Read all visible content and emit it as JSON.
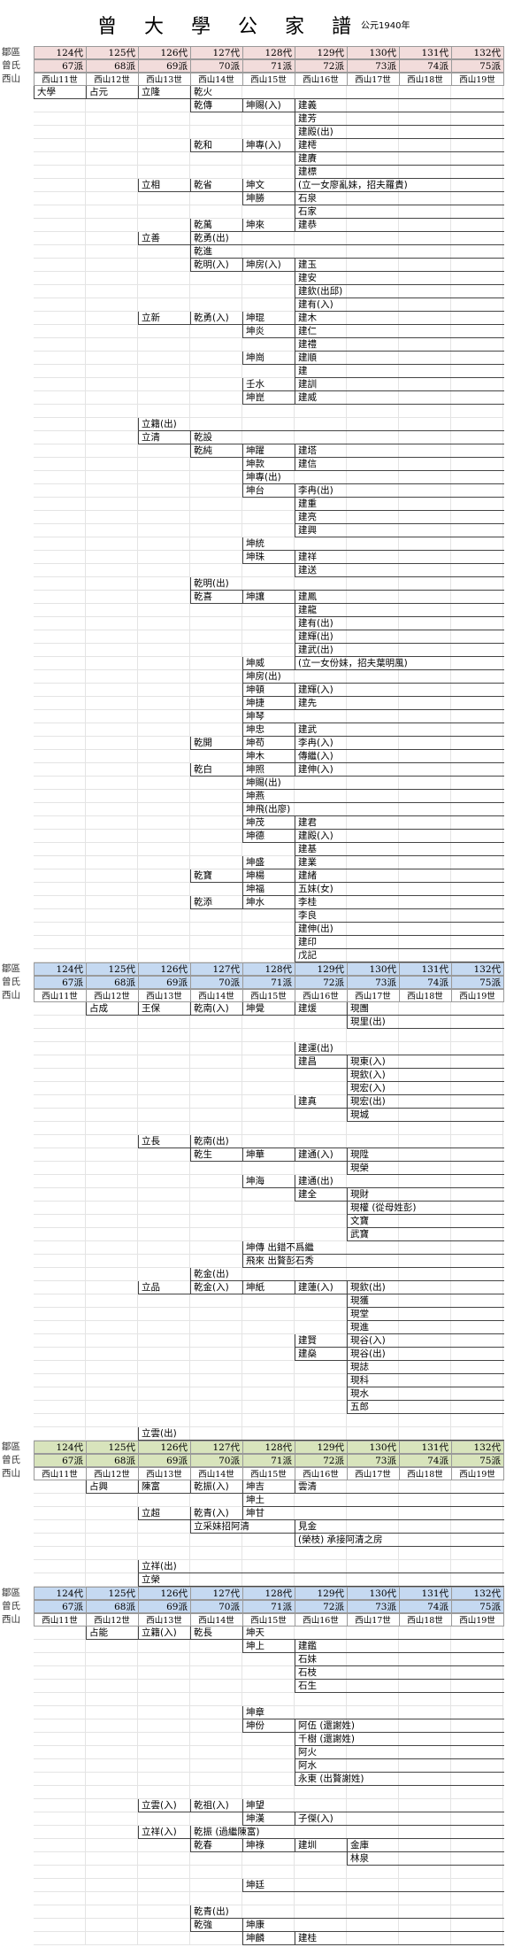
{
  "header": {
    "title": "曾 大 學 公 家 譜",
    "year": "公元1940年"
  },
  "sections": [
    {
      "color": "#f2dcdb",
      "headers": [
        [
          "鄒區",
          "124代",
          "125代",
          "126代",
          "127代",
          "128代",
          "129代",
          "130代",
          "131代",
          "132代"
        ],
        [
          "曾氏",
          "67派",
          "68派",
          "69派",
          "70派",
          "71派",
          "72派",
          "73派",
          "74派",
          "75派"
        ],
        [
          "西山",
          "西山11世",
          "西山12世",
          "西山13世",
          "西山14世",
          "西山15世",
          "西山16世",
          "西山17世",
          "西山18世",
          "西山19世"
        ]
      ],
      "rows": [
        [
          null,
          "大學",
          "占元",
          "立隆",
          "乾火"
        ],
        [
          null,
          null,
          null,
          null,
          "乾傳",
          "坤賜(入)",
          "建義"
        ],
        [
          null,
          null,
          null,
          null,
          null,
          null,
          "建芳"
        ],
        [
          null,
          null,
          null,
          null,
          null,
          null,
          "建殿(出)"
        ],
        [
          null,
          null,
          null,
          null,
          "乾和",
          "坤專(入)",
          "建樗"
        ],
        [
          null,
          null,
          null,
          null,
          null,
          null,
          "建賡"
        ],
        [
          null,
          null,
          null,
          null,
          null,
          null,
          "建標"
        ],
        [
          null,
          null,
          null,
          "立相",
          "乾省",
          "坤文",
          "(立一女廖亂妹，招夫羅貴)"
        ],
        [
          null,
          null,
          null,
          null,
          null,
          "坤勝",
          "石泉"
        ],
        [
          null,
          null,
          null,
          null,
          null,
          null,
          "石家"
        ],
        [
          null,
          null,
          null,
          null,
          "乾萬",
          "坤來",
          "建恭"
        ],
        [
          null,
          null,
          null,
          "立善",
          "乾勇(出)"
        ],
        [
          null,
          null,
          null,
          null,
          "乾進"
        ],
        [
          null,
          null,
          null,
          null,
          "乾明(入)",
          "坤房(入)",
          "建玉"
        ],
        [
          null,
          null,
          null,
          null,
          null,
          null,
          "建安"
        ],
        [
          null,
          null,
          null,
          null,
          null,
          null,
          "建欽(出邱)"
        ],
        [
          null,
          null,
          null,
          null,
          null,
          null,
          "建有(入)"
        ],
        [
          null,
          null,
          null,
          "立新",
          "乾勇(入)",
          "坤琨",
          "建木"
        ],
        [
          null,
          null,
          null,
          null,
          null,
          "坤炎",
          "建仁"
        ],
        [
          null,
          null,
          null,
          null,
          null,
          null,
          "建禮"
        ],
        [
          null,
          null,
          null,
          null,
          null,
          "坤崗",
          "建順"
        ],
        [
          null,
          null,
          null,
          null,
          null,
          null,
          "建"
        ],
        [
          null,
          null,
          null,
          null,
          null,
          "壬水",
          "建訓"
        ],
        [
          null,
          null,
          null,
          null,
          null,
          "坤崑",
          "建威"
        ],
        [],
        [
          null,
          null,
          null,
          "立籍(出)"
        ],
        [
          null,
          null,
          null,
          "立清",
          "乾設"
        ],
        [
          null,
          null,
          null,
          null,
          "乾純",
          "坤躍",
          "建塔"
        ],
        [
          null,
          null,
          null,
          null,
          null,
          "坤款",
          "建信"
        ],
        [
          null,
          null,
          null,
          null,
          null,
          "坤專(出)"
        ],
        [
          null,
          null,
          null,
          null,
          null,
          "坤台",
          "李冉(出)"
        ],
        [
          null,
          null,
          null,
          null,
          null,
          null,
          "建重"
        ],
        [
          null,
          null,
          null,
          null,
          null,
          null,
          "建亮"
        ],
        [
          null,
          null,
          null,
          null,
          null,
          null,
          "建興"
        ],
        [
          null,
          null,
          null,
          null,
          null,
          "坤統"
        ],
        [
          null,
          null,
          null,
          null,
          null,
          "坤珠",
          "建祥"
        ],
        [
          null,
          null,
          null,
          null,
          null,
          null,
          "建送"
        ],
        [
          null,
          null,
          null,
          null,
          "乾明(出)"
        ],
        [
          null,
          null,
          null,
          null,
          "乾喜",
          "坤讓",
          "建鳳"
        ],
        [
          null,
          null,
          null,
          null,
          null,
          null,
          "建龍"
        ],
        [
          null,
          null,
          null,
          null,
          null,
          null,
          "建有(出)"
        ],
        [
          null,
          null,
          null,
          null,
          null,
          null,
          "建輝(出)"
        ],
        [
          null,
          null,
          null,
          null,
          null,
          null,
          "建武(出)"
        ],
        [
          null,
          null,
          null,
          null,
          null,
          "坤威",
          "(立一女份妹，招夫葉明風)"
        ],
        [
          null,
          null,
          null,
          null,
          null,
          "坤房(出)"
        ],
        [
          null,
          null,
          null,
          null,
          null,
          "坤頓",
          "建輝(入)"
        ],
        [
          null,
          null,
          null,
          null,
          null,
          "坤捷",
          "建先"
        ],
        [
          null,
          null,
          null,
          null,
          null,
          "坤琴"
        ],
        [
          null,
          null,
          null,
          null,
          null,
          "坤忠",
          "建武"
        ],
        [
          null,
          null,
          null,
          null,
          "乾開",
          "坤苟",
          "李冉(入)"
        ],
        [
          null,
          null,
          null,
          null,
          null,
          "坤木",
          "傳繼(入)"
        ],
        [
          null,
          null,
          null,
          null,
          "乾白",
          "坤照",
          "建伸(入)"
        ],
        [
          null,
          null,
          null,
          null,
          null,
          "坤賜(出)"
        ],
        [
          null,
          null,
          null,
          null,
          null,
          "坤燕"
        ],
        [
          null,
          null,
          null,
          null,
          null,
          "坤飛(出廖)"
        ],
        [
          null,
          null,
          null,
          null,
          null,
          "坤茂",
          "建君"
        ],
        [
          null,
          null,
          null,
          null,
          null,
          "坤德",
          "建殿(入)"
        ],
        [
          null,
          null,
          null,
          null,
          null,
          null,
          "建基"
        ],
        [
          null,
          null,
          null,
          null,
          null,
          "坤盛",
          "建業"
        ],
        [
          null,
          null,
          null,
          null,
          "乾寶",
          "坤楊",
          "建緒"
        ],
        [
          null,
          null,
          null,
          null,
          null,
          "坤福",
          "五妹(女)"
        ],
        [
          null,
          null,
          null,
          null,
          "乾添",
          "坤水",
          "李桂"
        ],
        [
          null,
          null,
          null,
          null,
          null,
          null,
          "李良"
        ],
        [
          null,
          null,
          null,
          null,
          null,
          null,
          "建伸(出)"
        ],
        [
          null,
          null,
          null,
          null,
          null,
          null,
          "建印"
        ],
        [
          null,
          null,
          null,
          null,
          null,
          null,
          "戊記"
        ]
      ]
    },
    {
      "color": "#c5d9f1",
      "headers": [
        [
          "鄒區",
          "124代",
          "125代",
          "126代",
          "127代",
          "128代",
          "129代",
          "130代",
          "131代",
          "132代"
        ],
        [
          "曾氏",
          "67派",
          "68派",
          "69派",
          "70派",
          "71派",
          "72派",
          "73派",
          "74派",
          "75派"
        ],
        [
          "西山",
          "西山11世",
          "西山12世",
          "西山13世",
          "西山14世",
          "西山15世",
          "西山16世",
          "西山17世",
          "西山18世",
          "西山19世"
        ]
      ],
      "rows": [
        [
          null,
          null,
          "占成",
          "王保",
          "乾南(入)",
          "坤覺",
          "建煖",
          "現團"
        ],
        [
          null,
          null,
          null,
          null,
          null,
          null,
          null,
          "現里(出)"
        ],
        [],
        [
          null,
          null,
          null,
          null,
          null,
          null,
          "建運(出)"
        ],
        [
          null,
          null,
          null,
          null,
          null,
          null,
          "建昌",
          "現東(入)"
        ],
        [
          null,
          null,
          null,
          null,
          null,
          null,
          null,
          "現欽(入)"
        ],
        [
          null,
          null,
          null,
          null,
          null,
          null,
          null,
          "現宏(入)"
        ],
        [
          null,
          null,
          null,
          null,
          null,
          null,
          "建真",
          "現宏(出)"
        ],
        [
          null,
          null,
          null,
          null,
          null,
          null,
          null,
          "現城"
        ],
        [],
        [
          null,
          null,
          null,
          "立長",
          "乾南(出)"
        ],
        [
          null,
          null,
          null,
          null,
          "乾生",
          "坤華",
          "建通(入)",
          "現陞"
        ],
        [
          null,
          null,
          null,
          null,
          null,
          null,
          null,
          "現榮"
        ],
        [
          null,
          null,
          null,
          null,
          null,
          "坤海",
          "建通(出)"
        ],
        [
          null,
          null,
          null,
          null,
          null,
          null,
          "建全",
          "現財"
        ],
        [
          null,
          null,
          null,
          null,
          null,
          null,
          null,
          "現權 (從母姓彭)"
        ],
        [
          null,
          null,
          null,
          null,
          null,
          null,
          null,
          "文寶"
        ],
        [
          null,
          null,
          null,
          null,
          null,
          null,
          null,
          "武寶"
        ],
        [
          null,
          null,
          null,
          null,
          null,
          "坤傳 出錯不爲繼"
        ],
        [
          null,
          null,
          null,
          null,
          null,
          "飛來 出贅彭石秀"
        ],
        [
          null,
          null,
          null,
          null,
          "乾金(出)"
        ],
        [
          null,
          null,
          null,
          "立品",
          "乾金(入)",
          "坤紙",
          "建蓮(入)",
          "現欽(出)"
        ],
        [
          null,
          null,
          null,
          null,
          null,
          null,
          null,
          "現獲"
        ],
        [
          null,
          null,
          null,
          null,
          null,
          null,
          null,
          "現堂"
        ],
        [
          null,
          null,
          null,
          null,
          null,
          null,
          null,
          "現進"
        ],
        [
          null,
          null,
          null,
          null,
          null,
          null,
          "建賢",
          "現谷(入)"
        ],
        [
          null,
          null,
          null,
          null,
          null,
          null,
          "建燊",
          "現谷(出)"
        ],
        [
          null,
          null,
          null,
          null,
          null,
          null,
          null,
          "現誌"
        ],
        [
          null,
          null,
          null,
          null,
          null,
          null,
          null,
          "現科"
        ],
        [
          null,
          null,
          null,
          null,
          null,
          null,
          null,
          "現水"
        ],
        [
          null,
          null,
          null,
          null,
          null,
          null,
          null,
          "五郎"
        ],
        [],
        [
          null,
          null,
          null,
          "立雲(出)"
        ]
      ]
    },
    {
      "color": "#d8e4bc",
      "headers": [
        [
          "鄒區",
          "124代",
          "125代",
          "126代",
          "127代",
          "128代",
          "129代",
          "130代",
          "131代",
          "132代"
        ],
        [
          "曾氏",
          "67派",
          "68派",
          "69派",
          "70派",
          "71派",
          "72派",
          "73派",
          "74派",
          "75派"
        ],
        [
          "西山",
          "西山11世",
          "西山12世",
          "西山13世",
          "西山14世",
          "西山15世",
          "西山16世",
          "西山17世",
          "西山18世",
          "西山19世"
        ]
      ],
      "rows": [
        [
          null,
          null,
          "占興",
          "陳富",
          "乾振(入)",
          "坤吉",
          "雲清"
        ],
        [
          null,
          null,
          null,
          null,
          null,
          "坤土"
        ],
        [
          null,
          null,
          null,
          "立超",
          "乾青(入)",
          "坤甘"
        ],
        [
          null,
          null,
          null,
          null,
          "立采妹招阿清",
          null,
          "見金"
        ],
        [
          null,
          null,
          null,
          null,
          null,
          null,
          "(榮枝) 承接阿清之房"
        ],
        [],
        [
          null,
          null,
          null,
          "立祥(出)"
        ],
        [
          null,
          null,
          null,
          "立榮"
        ]
      ]
    },
    {
      "color": "#c5d9f1",
      "headers": [
        [
          "鄒區",
          "124代",
          "125代",
          "126代",
          "127代",
          "128代",
          "129代",
          "130代",
          "131代",
          "132代"
        ],
        [
          "曾氏",
          "67派",
          "68派",
          "69派",
          "70派",
          "71派",
          "72派",
          "73派",
          "74派",
          "75派"
        ],
        [
          "西山",
          "西山11世",
          "西山12世",
          "西山13世",
          "西山14世",
          "西山15世",
          "西山16世",
          "西山17世",
          "西山18世",
          "西山19世"
        ]
      ],
      "rows": [
        [
          null,
          null,
          "占能",
          "立籍(入)",
          "乾長",
          "坤天"
        ],
        [
          null,
          null,
          null,
          null,
          null,
          "坤上",
          "建鑑"
        ],
        [
          null,
          null,
          null,
          null,
          null,
          null,
          "石妹"
        ],
        [
          null,
          null,
          null,
          null,
          null,
          null,
          "石枝"
        ],
        [
          null,
          null,
          null,
          null,
          null,
          null,
          "石生"
        ],
        [],
        [
          null,
          null,
          null,
          null,
          null,
          "坤章"
        ],
        [
          null,
          null,
          null,
          null,
          null,
          "坤份",
          "阿伍 (還謝姓)"
        ],
        [
          null,
          null,
          null,
          null,
          null,
          null,
          "千樹 (還謝姓)"
        ],
        [
          null,
          null,
          null,
          null,
          null,
          null,
          "阿火"
        ],
        [
          null,
          null,
          null,
          null,
          null,
          null,
          "阿水"
        ],
        [
          null,
          null,
          null,
          null,
          null,
          null,
          "永東 (出贅謝姓)"
        ],
        [],
        [
          null,
          null,
          null,
          "立雲(入)",
          "乾祖(入)",
          "坤望"
        ],
        [
          null,
          null,
          null,
          null,
          null,
          "坤漢",
          "子傑(入)"
        ],
        [
          null,
          null,
          null,
          "立祥(入)",
          "乾振 (過繼陳富)"
        ],
        [
          null,
          null,
          null,
          null,
          "乾春",
          "坤祿",
          "建圳",
          "金庫"
        ],
        [
          null,
          null,
          null,
          null,
          null,
          null,
          null,
          "林泉"
        ],
        [],
        [
          null,
          null,
          null,
          null,
          null,
          "坤廷"
        ],
        [],
        [
          null,
          null,
          null,
          null,
          "乾青(出)"
        ],
        [
          null,
          null,
          null,
          null,
          "乾強",
          "坤康"
        ],
        [
          null,
          null,
          null,
          null,
          null,
          "坤麟",
          "建桂"
        ]
      ]
    }
  ]
}
